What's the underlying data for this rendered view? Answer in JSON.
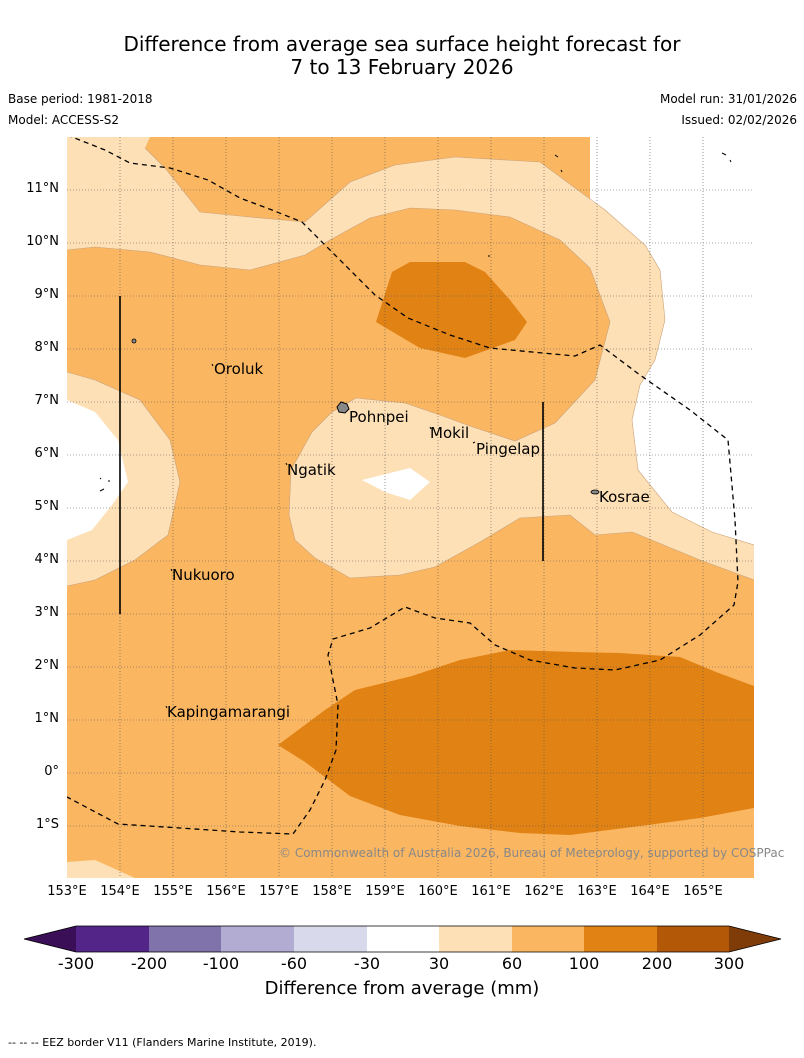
{
  "title": {
    "line1": "Difference from average sea surface height forecast for",
    "line2": "7 to 13 February 2026"
  },
  "meta": {
    "base_period": "Base period: 1981-2018",
    "model": "Model: ACCESS-S2",
    "model_run": "Model run: 31/01/2026",
    "issued": "Issued: 02/02/2026"
  },
  "credit": "© Commonwealth of Australia 2026, Bureau of Meteorology, supported by COSPPac",
  "latitude_labels": [
    "11°N",
    "10°N",
    "9°N",
    "8°N",
    "7°N",
    "6°N",
    "5°N",
    "4°N",
    "3°N",
    "2°N",
    "1°N",
    "0°",
    "1°S"
  ],
  "longitude_labels": [
    "153°E",
    "154°E",
    "155°E",
    "156°E",
    "157°E",
    "158°E",
    "159°E",
    "160°E",
    "161°E",
    "162°E",
    "163°E",
    "164°E",
    "165°E"
  ],
  "places": {
    "oroluk": "Oroluk",
    "pohnpei": "Pohnpei",
    "mokil": "Mokil",
    "pingelap": "Pingelap",
    "ngatik": "Ngatik",
    "kosrae": "Kosrae",
    "nukuoro": "Nukuoro",
    "kapingamarangi": "Kapingamarangi"
  },
  "colorbar": {
    "title": "Difference from average (mm)",
    "labels": [
      "-300",
      "-200",
      "-100",
      "-60",
      "-30",
      "30",
      "60",
      "100",
      "200",
      "300"
    ],
    "colors": [
      "#3b0f57",
      "#542588",
      "#8073ac",
      "#b2abd2",
      "#d8daeb",
      "#ffffff",
      "#fee0b6",
      "#fbb661",
      "#e08214",
      "#b35806",
      "#7f3b08"
    ]
  },
  "footnote": "-- -- -- EEZ border V11 (Flanders Marine Institute, 2019).",
  "fill_colors": {
    "white": "#ffffff",
    "light": "#fee0b6",
    "medium": "#fbb661",
    "dark": "#e08214"
  }
}
